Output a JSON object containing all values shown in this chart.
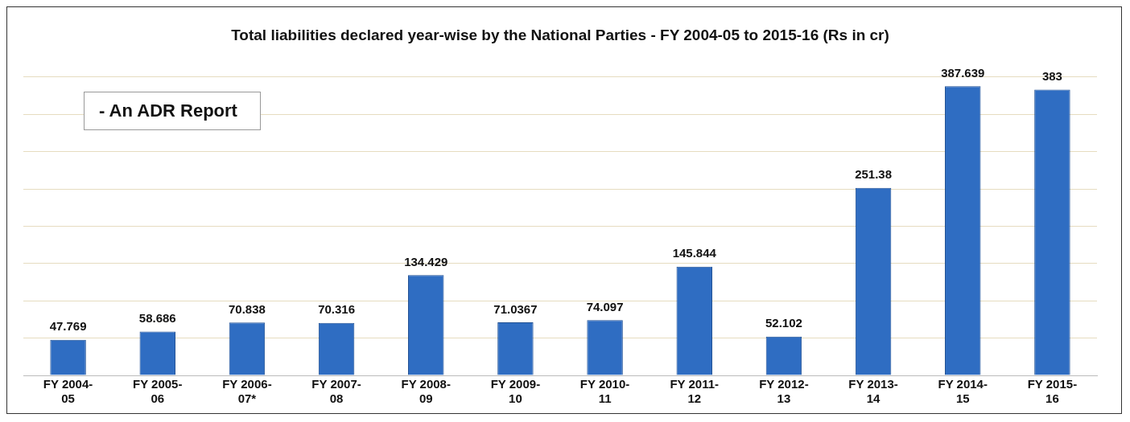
{
  "chart_data": {
    "type": "bar",
    "title": "Total liabilities declared year-wise by the National Parties - FY 2004-05 to 2015-16 (Rs in cr)",
    "categories": [
      "FY 2004-05",
      "FY 2005-06",
      "FY 2006-07*",
      "FY 2007-08",
      "FY 2008-09",
      "FY 2009-10",
      "FY 2010-11",
      "FY 2011-12",
      "FY 2012-13",
      "FY 2013-14",
      "FY 2014-15",
      "FY 2015-16"
    ],
    "values": [
      47.769,
      58.686,
      70.838,
      70.316,
      134.429,
      71.0367,
      74.097,
      145.844,
      52.102,
      251.38,
      387.639,
      383
    ],
    "color": "#2f6dc2",
    "tick_labels": "x",
    "grid": "y",
    "data_labels": true,
    "legend": false,
    "annotations": [
      "- An ADR Report"
    ]
  }
}
